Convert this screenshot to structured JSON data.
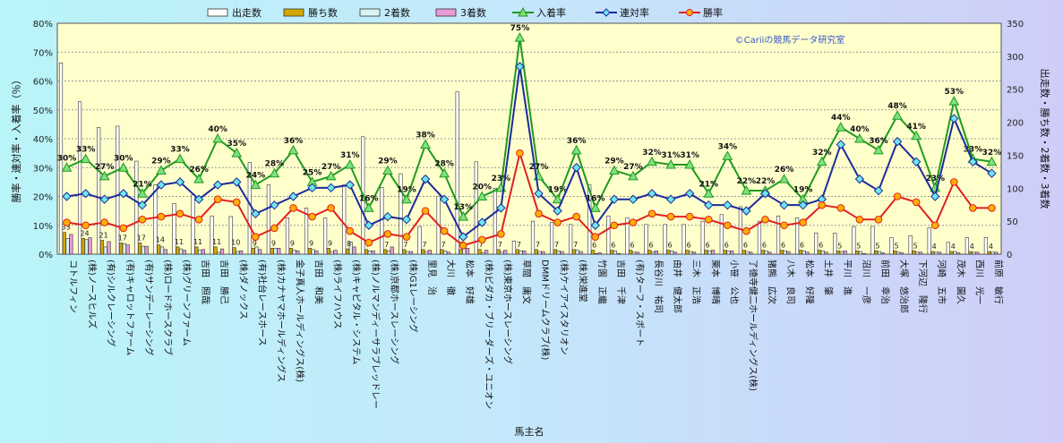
{
  "chart_data": {
    "type": "bar",
    "x_axis_label": "馬主名",
    "y_left_label": "勝率・連対率・入着率（％）",
    "y_right_label": "出走数・勝ち数・2着数・3着数",
    "watermark": "©Cariiの競馬データ研究室",
    "y_left_range": [
      0,
      80
    ],
    "y_left_ticks": [
      "0%",
      "10%",
      "20%",
      "30%",
      "40%",
      "50%",
      "60%",
      "70%",
      "80%"
    ],
    "y_right_range": [
      0,
      350
    ],
    "y_right_ticks": [
      "0",
      "50",
      "100",
      "150",
      "200",
      "250",
      "300",
      "350"
    ],
    "legend": [
      "出走数",
      "勝ち数",
      "2着数",
      "3着数",
      "入着率",
      "連対率",
      "勝率"
    ],
    "colors": {
      "starts": "#ffffff",
      "wins": "#d2a800",
      "seconds": "#d9f4f4",
      "thirds": "#e79bd7",
      "place_rate": "#1f9a1f",
      "rentai_rate": "#1b2b9c",
      "win_rate": "#e02020",
      "plot_bg": "#ffffcc"
    },
    "categories": [
      "コトルフィン",
      "(株)ノースヒルズ",
      "(有)シルクレーシング",
      "(有)キャロットファーム",
      "(有)サンデーレーシング",
      "(株)ロードホースクラブ",
      "(株)グリーンファーム",
      "吉田　照哉",
      "吉田　勝己",
      "(株)ダノックス",
      "(有)社台レースホース",
      "(株)カナヤマホールディングス",
      "金子真人ホールディングス(株)",
      "吉田　和美",
      "(株)ライフハウス",
      "(株)キャピタル・システム",
      "(株)ノルマンディーサラブレッドレー",
      "(株)京都ホースレーシング",
      "(株)G1レーシング",
      "里見　治",
      "大川　徹",
      "松本　好雄",
      "(株)ビダカ・ブリーダーズ・ユニオン",
      "(株)東京ホースレーシング",
      "草間　庸文",
      "DMMドリームクラブ(株)",
      "(株)ケイアイスタリオン",
      "(株)栄進堂",
      "竹園　正繼",
      "吉田　千津",
      "(有)ターフ・スポート",
      "長谷川　祐司",
      "由井　健太郎",
      "三木　正浩",
      "栗本　博晴",
      "小笹　公也",
      "了徳寺健二ホールディングス(株)",
      "猪熊　広次",
      "八木　良司",
      "松本　好隆",
      "土井　肇",
      "平川　進",
      "沼川　一彦",
      "前田　幸治",
      "大塚　悠治郎",
      "下河辺　隆行",
      "河崎　五市",
      "茂木　園久",
      "西川　光一",
      "前原　敏行"
    ],
    "series": [
      {
        "name": "出走数",
        "values": [
          290,
          231,
          192,
          194,
          141,
          105,
          77,
          90,
          58,
          57,
          139,
          105,
          55,
          70,
          55,
          105,
          178,
          101,
          122,
          42,
          88,
          246,
          140,
          100,
          20,
          50,
          48,
          45,
          105,
          58,
          55,
          45,
          45,
          45,
          50,
          60,
          72,
          50,
          58,
          55,
          32,
          32,
          42,
          42,
          25,
          28,
          40,
          18,
          25,
          25
        ]
      },
      {
        "name": "勝ち数",
        "values": [
          33,
          24,
          21,
          17,
          17,
          14,
          11,
          11,
          11,
          10,
          9,
          9,
          9,
          9,
          9,
          8,
          7,
          7,
          7,
          7,
          7,
          7,
          7,
          7,
          7,
          7,
          7,
          7,
          6,
          6,
          6,
          6,
          6,
          6,
          6,
          6,
          6,
          6,
          6,
          6,
          6,
          5,
          5,
          5,
          5,
          5,
          4,
          4,
          4,
          4
        ]
      },
      {
        "name": "2着数",
        "values": [
          24,
          22,
          11,
          16,
          12,
          11,
          8,
          6,
          3,
          4,
          11,
          9,
          6,
          7,
          4,
          18,
          5,
          5,
          4,
          4,
          5,
          9,
          2,
          3,
          5,
          4,
          5,
          6,
          1,
          5,
          3,
          3,
          5,
          4,
          5,
          5,
          4,
          5,
          5,
          5,
          5,
          4,
          4,
          4,
          3,
          3,
          3,
          4,
          3,
          3
        ]
      },
      {
        "name": "3着数",
        "values": [
          30,
          25,
          19,
          14,
          12,
          7,
          6,
          7,
          8,
          5,
          7,
          9,
          5,
          5,
          6,
          11,
          5,
          11,
          4,
          6,
          3,
          9,
          6,
          6,
          5,
          4,
          4,
          4,
          2,
          1,
          3,
          5,
          3,
          3,
          6,
          5,
          3,
          3,
          4,
          3,
          3,
          5,
          1,
          2,
          2,
          3,
          3,
          2,
          3,
          3
        ]
      },
      {
        "name": "入着率",
        "values": [
          30,
          33,
          27,
          30,
          21,
          29,
          33,
          26,
          40,
          35,
          24,
          28,
          36,
          25,
          27,
          31,
          16,
          29,
          19,
          38,
          28,
          13,
          20,
          23,
          75,
          27,
          19,
          36,
          16,
          29,
          27,
          32,
          31,
          31,
          21,
          34,
          22,
          22,
          26,
          19,
          32,
          44,
          40,
          36,
          48,
          41,
          23,
          53,
          33,
          32
        ]
      },
      {
        "name": "連対率",
        "values": [
          20,
          21,
          19,
          21,
          17,
          24,
          25,
          19,
          24,
          25,
          14,
          17,
          20,
          23,
          23,
          24,
          10,
          13,
          12,
          26,
          19,
          6,
          11,
          16,
          65,
          21,
          15,
          30,
          10,
          19,
          19,
          21,
          19,
          21,
          17,
          17,
          15,
          21,
          17,
          17,
          19,
          38,
          26,
          22,
          39,
          32,
          20,
          47,
          32,
          28
        ]
      },
      {
        "name": "勝率",
        "values": [
          11,
          10,
          11,
          9,
          12,
          13,
          14,
          12,
          19,
          18,
          6,
          9,
          16,
          13,
          16,
          8,
          4,
          7,
          6,
          15,
          8,
          3,
          5,
          7,
          35,
          14,
          11,
          13,
          6,
          10,
          11,
          14,
          13,
          13,
          12,
          10,
          8,
          12,
          10,
          11,
          17,
          16,
          12,
          12,
          20,
          18,
          10,
          25,
          16,
          16
        ]
      }
    ],
    "bar_top_labels": {
      "勝ち数": [
        33,
        24,
        21,
        17,
        17,
        14,
        11,
        11,
        11,
        10,
        9,
        9,
        9,
        9,
        9,
        8,
        7,
        7,
        7,
        7,
        7,
        7,
        7,
        7,
        7,
        7,
        7,
        7,
        6,
        6,
        6,
        6,
        6,
        6,
        6,
        6,
        6,
        6,
        6,
        6,
        6,
        5,
        5,
        5,
        5,
        5,
        4,
        4,
        4,
        4
      ]
    }
  }
}
